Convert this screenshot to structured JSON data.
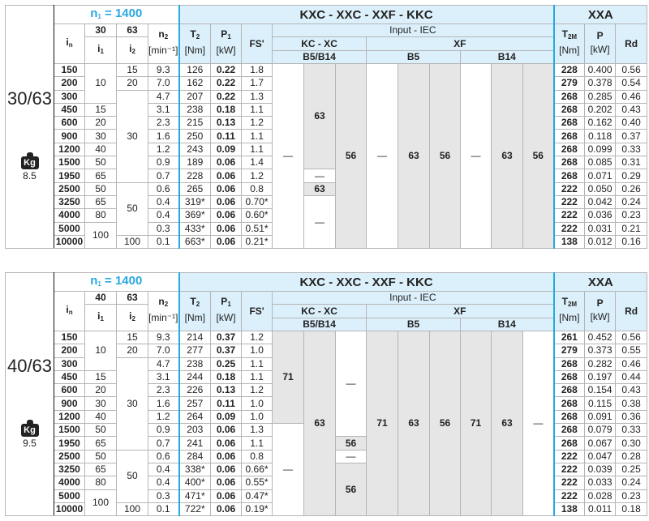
{
  "headers": {
    "n1": {
      "t": "n",
      "s": "1",
      "r": " = 1400"
    },
    "title": "KXC - XXC - XXF - KKC",
    "xxa": "XXA",
    "in": {
      "t": "i",
      "s": "n"
    },
    "i1": {
      "t": "i",
      "s": "1"
    },
    "i2": {
      "t": "i",
      "s": "2"
    },
    "n2": {
      "t": "n",
      "s": "2",
      "unit": "[min⁻¹]"
    },
    "T2": {
      "t": "T",
      "s": "2",
      "unit": "[Nm]"
    },
    "P1": {
      "t": "P",
      "s": "1",
      "unit": "[kW]"
    },
    "FS": "FS'",
    "input": "Input  -  IEC",
    "kcxc": "KC - XC",
    "xf": "XF",
    "b5b14": "B5/B14",
    "b5": "B5",
    "b14": "B14",
    "T2M": {
      "t": "T",
      "s": "2M",
      "unit": "[Nm]"
    },
    "P": {
      "t": "P",
      "s": "",
      "unit": "[kW]"
    },
    "Rd": "Rd"
  },
  "colors": {
    "header_bg": "#dcf0fb",
    "accent": "#2aa9e0",
    "gray_cell": "#e6e6e6"
  },
  "tables": [
    {
      "model": "30/63",
      "weight_icon": "kg-weight-icon",
      "weight_label": "Kg",
      "weight": "8.5",
      "i1_head": "30",
      "i2_head": "63",
      "in": [
        "150",
        "200",
        "300",
        "450",
        "600",
        "900",
        "1200",
        "1500",
        "1950",
        "2500",
        "3250",
        "4000",
        "5000",
        "10000"
      ],
      "i1": [
        {
          "v": "10",
          "n": 3
        },
        {
          "v": "15",
          "n": 1
        },
        {
          "v": "20",
          "n": 1
        },
        {
          "v": "30",
          "n": 1
        },
        {
          "v": "40",
          "n": 1
        },
        {
          "v": "50",
          "n": 1
        },
        {
          "v": "65",
          "n": 1
        },
        {
          "v": "50",
          "n": 1
        },
        {
          "v": "65",
          "n": 1
        },
        {
          "v": "80",
          "n": 1
        },
        {
          "v": "100",
          "n": 2
        }
      ],
      "i2": [
        {
          "v": "15",
          "n": 1
        },
        {
          "v": "20",
          "n": 1
        },
        {
          "v": "30",
          "n": 7
        },
        {
          "v": "50",
          "n": 4
        },
        {
          "v": "100",
          "n": 1
        }
      ],
      "n2": [
        "9.3",
        "7.0",
        "4.7",
        "3.1",
        "2.3",
        "1.6",
        "1.2",
        "0.9",
        "0.7",
        "0.6",
        "0.4",
        "0.4",
        "0.3",
        "0.1"
      ],
      "T2": [
        "126",
        "162",
        "207",
        "238",
        "215",
        "250",
        "243",
        "189",
        "228",
        "265",
        "319*",
        "369*",
        "433*",
        "663*"
      ],
      "P1": [
        "0.22",
        "0.22",
        "0.22",
        "0.18",
        "0.13",
        "0.11",
        "0.09",
        "0.06",
        "0.06",
        "0.06",
        "0.06",
        "0.06",
        "0.06",
        "0.06"
      ],
      "FS": [
        "1.8",
        "1.7",
        "1.3",
        "1.1",
        "1.2",
        "1.1",
        "1.1",
        "1.4",
        "1.2",
        "0.8",
        "0.70*",
        "0.60*",
        "0.51*",
        "0.21*"
      ],
      "iec": [
        [
          {
            "v": "—",
            "n": 14,
            "g": false
          }
        ],
        [
          {
            "v": "63",
            "n": 8,
            "g": true
          },
          {
            "v": "—",
            "n": 1,
            "g": false
          },
          {
            "v": "63",
            "n": 1,
            "g": true
          },
          {
            "v": "—",
            "n": 4,
            "g": false
          }
        ],
        [
          {
            "v": "56",
            "n": 14,
            "g": true
          }
        ],
        [
          {
            "v": "—",
            "n": 14,
            "g": false
          }
        ],
        [
          {
            "v": "63",
            "n": 14,
            "g": true
          }
        ],
        [
          {
            "v": "56",
            "n": 14,
            "g": true
          }
        ],
        [
          {
            "v": "—",
            "n": 14,
            "g": false
          }
        ],
        [
          {
            "v": "63",
            "n": 14,
            "g": true
          }
        ],
        [
          {
            "v": "56",
            "n": 14,
            "g": true
          }
        ]
      ],
      "T2M": [
        "228",
        "279",
        "268",
        "268",
        "268",
        "268",
        "268",
        "268",
        "268",
        "222",
        "222",
        "222",
        "222",
        "138"
      ],
      "P": [
        "0.400",
        "0.378",
        "0.285",
        "0.202",
        "0.162",
        "0.118",
        "0.099",
        "0.085",
        "0.071",
        "0.050",
        "0.042",
        "0.036",
        "0.031",
        "0.012"
      ],
      "Rd": [
        "0.56",
        "0.54",
        "0.46",
        "0.43",
        "0.40",
        "0.37",
        "0.33",
        "0.31",
        "0.29",
        "0.26",
        "0.24",
        "0.23",
        "0.21",
        "0.16"
      ]
    },
    {
      "model": "40/63",
      "weight_icon": "kg-weight-icon",
      "weight_label": "Kg",
      "weight": "9.5",
      "i1_head": "40",
      "i2_head": "63",
      "in": [
        "150",
        "200",
        "300",
        "450",
        "600",
        "900",
        "1200",
        "1500",
        "1950",
        "2500",
        "3250",
        "4000",
        "5000",
        "10000"
      ],
      "i1": [
        {
          "v": "10",
          "n": 3
        },
        {
          "v": "15",
          "n": 1
        },
        {
          "v": "20",
          "n": 1
        },
        {
          "v": "30",
          "n": 1
        },
        {
          "v": "40",
          "n": 1
        },
        {
          "v": "50",
          "n": 1
        },
        {
          "v": "65",
          "n": 1
        },
        {
          "v": "50",
          "n": 1
        },
        {
          "v": "65",
          "n": 1
        },
        {
          "v": "80",
          "n": 1
        },
        {
          "v": "100",
          "n": 2
        }
      ],
      "i2": [
        {
          "v": "15",
          "n": 1
        },
        {
          "v": "20",
          "n": 1
        },
        {
          "v": "30",
          "n": 7
        },
        {
          "v": "50",
          "n": 4
        },
        {
          "v": "100",
          "n": 1
        }
      ],
      "n2": [
        "9.3",
        "7.0",
        "4.7",
        "3.1",
        "2.3",
        "1.6",
        "1.2",
        "0.9",
        "0.7",
        "0.6",
        "0.4",
        "0.4",
        "0.3",
        "0.1"
      ],
      "T2": [
        "214",
        "277",
        "238",
        "244",
        "226",
        "257",
        "264",
        "203",
        "241",
        "284",
        "338*",
        "400*",
        "471*",
        "722*"
      ],
      "P1": [
        "0.37",
        "0.37",
        "0.25",
        "0.18",
        "0.13",
        "0.11",
        "0.09",
        "0.06",
        "0.06",
        "0.06",
        "0.06",
        "0.06",
        "0.06",
        "0.06"
      ],
      "FS": [
        "1.2",
        "1.0",
        "1.1",
        "1.1",
        "1.2",
        "1.0",
        "1.0",
        "1.3",
        "1.1",
        "0.8",
        "0.66*",
        "0.55*",
        "0.47*",
        "0.19*"
      ],
      "iec": [
        [
          {
            "v": "71",
            "n": 7,
            "g": true
          },
          {
            "v": "—",
            "n": 7,
            "g": false
          }
        ],
        [
          {
            "v": "63",
            "n": 14,
            "g": true
          }
        ],
        [
          {
            "v": "—",
            "n": 8,
            "g": false
          },
          {
            "v": "56",
            "n": 1,
            "g": true
          },
          {
            "v": "—",
            "n": 1,
            "g": false
          },
          {
            "v": "56",
            "n": 4,
            "g": true
          }
        ],
        [
          {
            "v": "71",
            "n": 14,
            "g": true
          }
        ],
        [
          {
            "v": "63",
            "n": 14,
            "g": true
          }
        ],
        [
          {
            "v": "56",
            "n": 14,
            "g": true
          }
        ],
        [
          {
            "v": "71",
            "n": 14,
            "g": true
          }
        ],
        [
          {
            "v": "63",
            "n": 14,
            "g": true
          }
        ],
        [
          {
            "v": "—",
            "n": 14,
            "g": false
          }
        ]
      ],
      "T2M": [
        "261",
        "279",
        "268",
        "268",
        "268",
        "268",
        "268",
        "268",
        "268",
        "222",
        "222",
        "222",
        "222",
        "138"
      ],
      "P": [
        "0.452",
        "0.373",
        "0.282",
        "0.197",
        "0.154",
        "0.115",
        "0.091",
        "0.079",
        "0.067",
        "0.047",
        "0.039",
        "0.033",
        "0.028",
        "0.011"
      ],
      "Rd": [
        "0.56",
        "0.55",
        "0.46",
        "0.44",
        "0.43",
        "0.38",
        "0.36",
        "0.33",
        "0.30",
        "0.28",
        "0.25",
        "0.24",
        "0.23",
        "0.18"
      ]
    }
  ]
}
